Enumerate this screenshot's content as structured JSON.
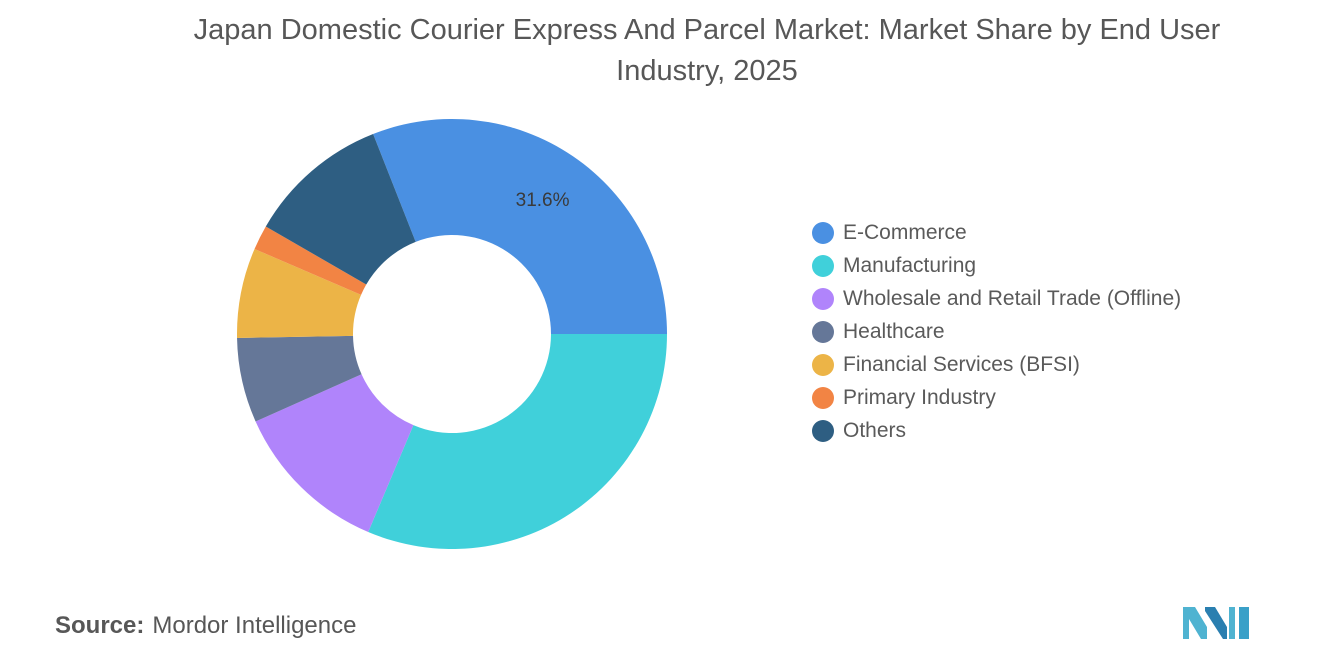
{
  "title": "Japan Domestic Courier Express And Parcel Market: Market Share by End User Industry, 2025",
  "source_label": "Source:",
  "source_value": "Mordor Intelligence",
  "colors": {
    "E-Commerce": "#4a90e2",
    "Manufacturing": "#40d0da",
    "Wholesale": "#b084fb",
    "Healthcare": "#657798",
    "Financial": "#ecb447",
    "Primary": "#f28444",
    "Others": "#2e5e82",
    "logo": "#4fb3d1"
  },
  "chart_data": {
    "type": "pie",
    "variant": "donut",
    "title": "Japan Domestic Courier Express And Parcel Market: Market Share by End User Industry, 2025",
    "unit": "%",
    "legend_position": "right",
    "series": [
      {
        "name": "E-Commerce",
        "value": 31.6,
        "label": "31.6%",
        "color": "#4a90e2"
      },
      {
        "name": "Manufacturing",
        "value": 32.0,
        "label": "",
        "color": "#40d0da"
      },
      {
        "name": "Wholesale and Retail Trade (Offline)",
        "value": 12.2,
        "label": "",
        "color": "#b084fb"
      },
      {
        "name": "Healthcare",
        "value": 6.5,
        "label": "",
        "color": "#657798"
      },
      {
        "name": "Financial Services (BFSI)",
        "value": 6.9,
        "label": "",
        "color": "#ecb447"
      },
      {
        "name": "Primary Industry",
        "value": 1.9,
        "label": "",
        "color": "#f28444"
      },
      {
        "name": "Others",
        "value": 10.9,
        "label": "",
        "color": "#2e5e82"
      }
    ]
  }
}
